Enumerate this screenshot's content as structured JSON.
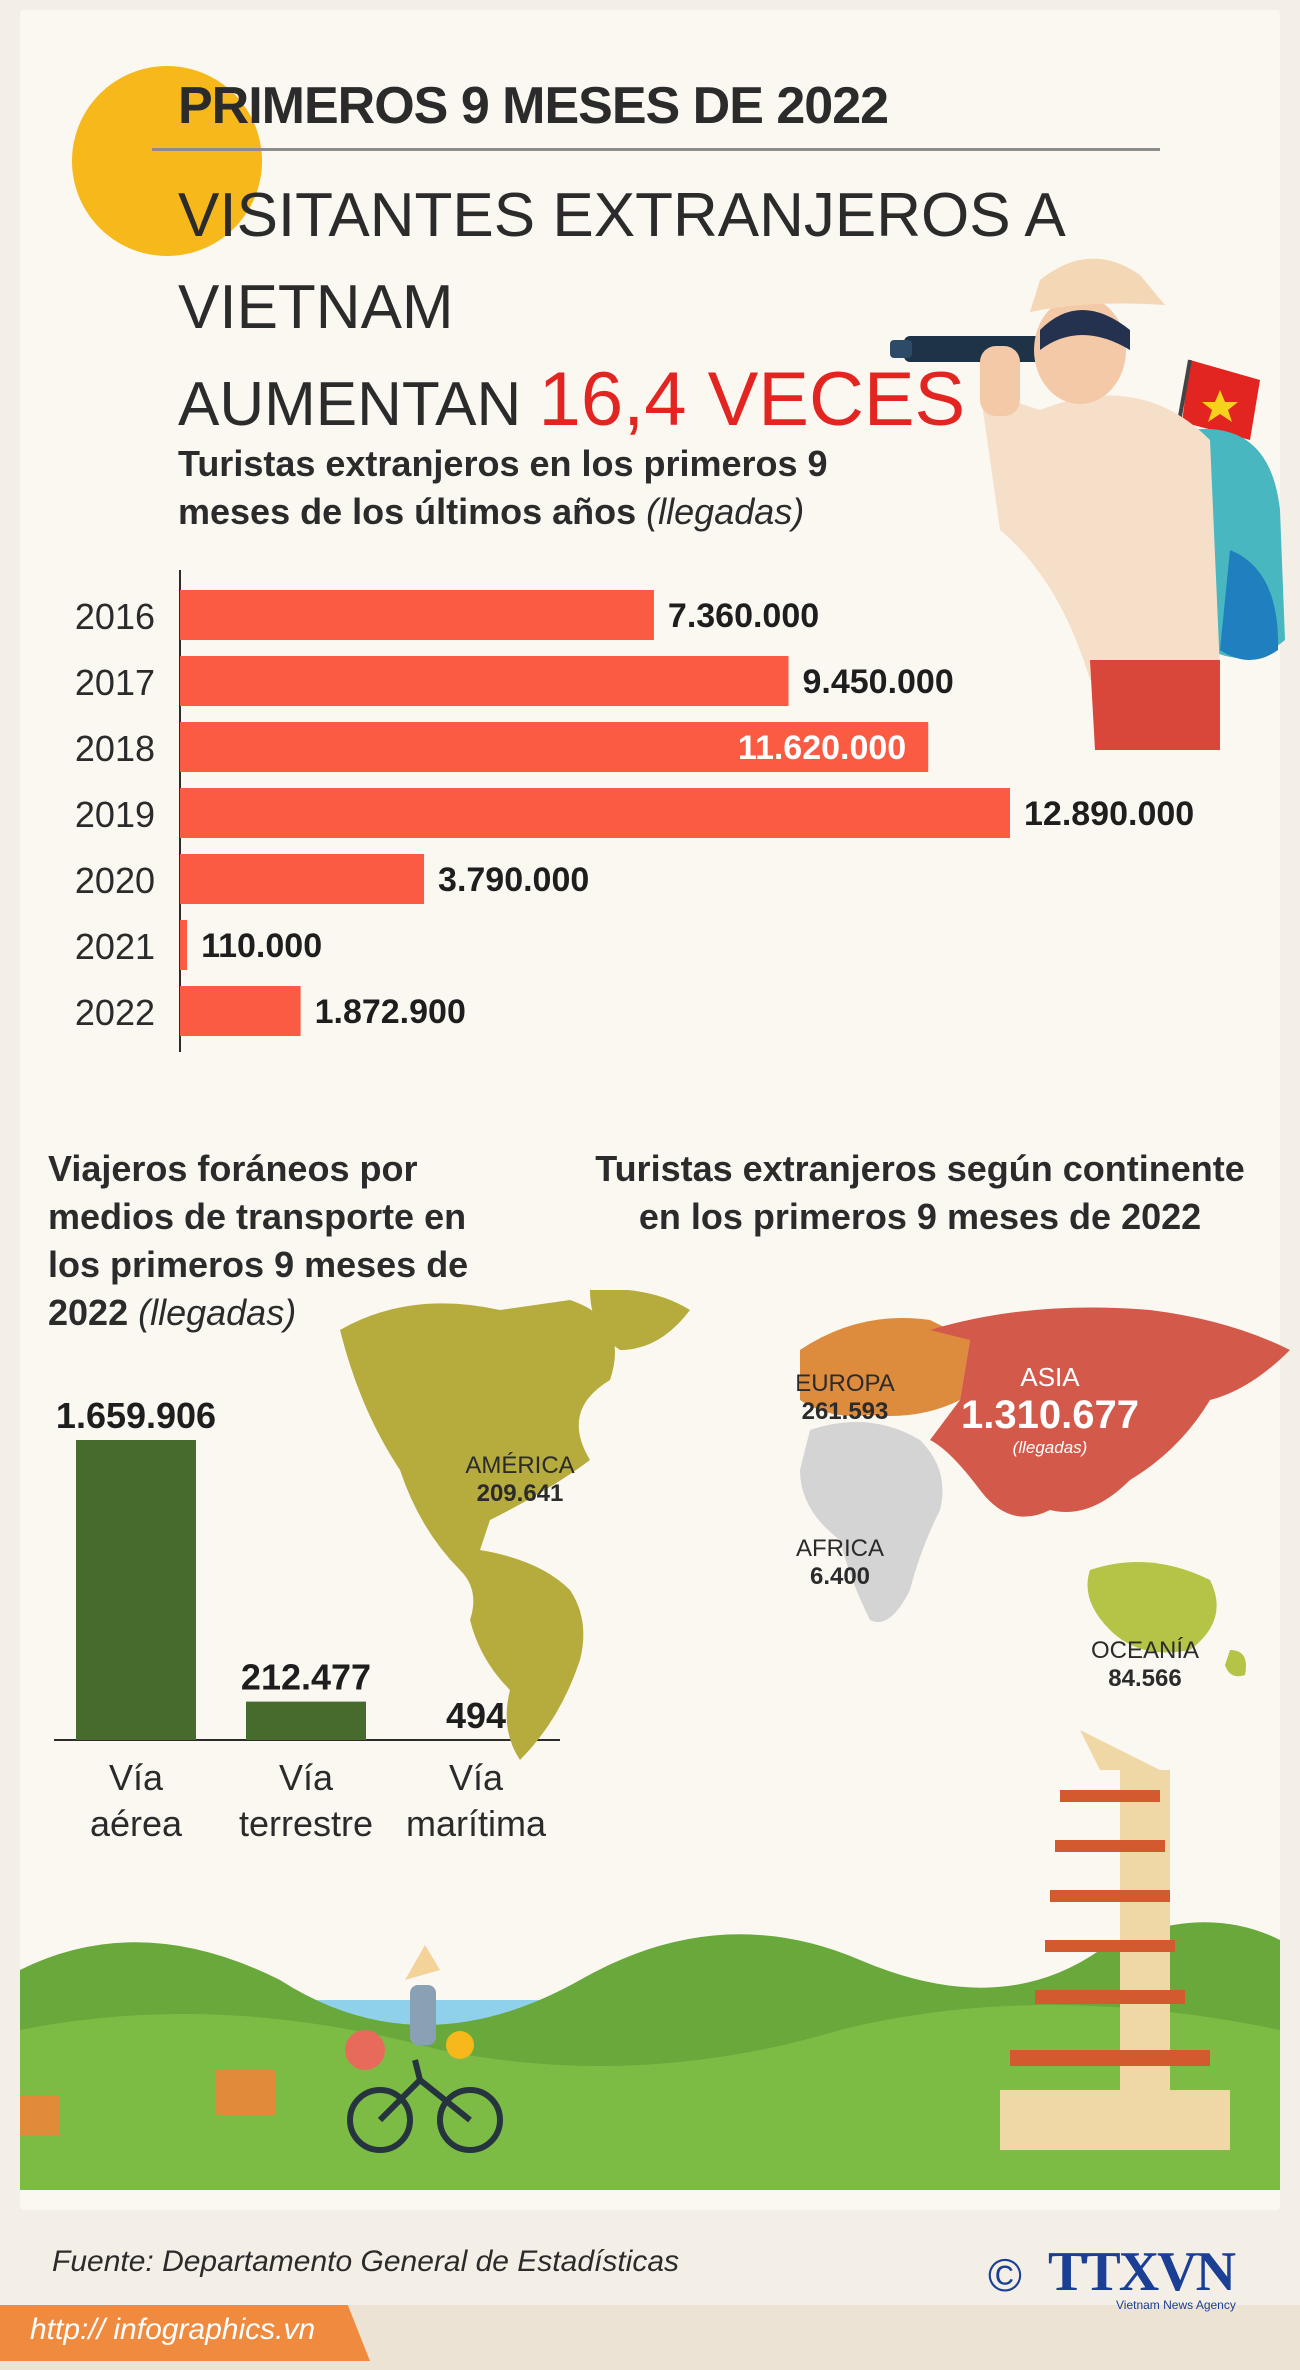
{
  "header": {
    "kicker": "PRIMEROS 9 MESES DE 2022",
    "headline_line1": "VISITANTES EXTRANJEROS A VIETNAM",
    "headline_line2_prefix": "AUMENTAN",
    "headline_highlight": "16,4 VECES"
  },
  "colors": {
    "bar_red": "#fb5a43",
    "bar_green": "#476b2c",
    "highlight_red": "#e32521",
    "america": "#b6ac3e",
    "europe": "#dd8b3d",
    "asia": "#d35a4b",
    "africa": "#d4d4d4",
    "oceania": "#b5c346"
  },
  "yearly": {
    "title_line1": "Turistas extranjeros en los primeros 9",
    "title_line2": "meses de los últimos años",
    "unit": "(llegadas)"
  },
  "transport": {
    "title_line1": "Viajeros foráneos por",
    "title_line2": "medios de transporte en",
    "title_line3": "los primeros 9 meses de",
    "title_line4": "2022",
    "unit": "(llegadas)"
  },
  "continents": {
    "title_line1": "Turistas extranjeros según continente",
    "title_line2": "en los primeros 9 meses de 2022",
    "america_name": "AMÉRICA",
    "america_value": "209.641",
    "europe_name": "EUROPA",
    "europe_value": "261.593",
    "asia_name": "ASIA",
    "asia_value": "1.310.677",
    "asia_unit": "(llegadas)",
    "africa_name": "AFRICA",
    "africa_value": "6.400",
    "oceania_name": "OCEANÍA",
    "oceania_value": "84.566"
  },
  "chart_data": [
    {
      "type": "bar",
      "orientation": "horizontal",
      "categories": [
        "2016",
        "2017",
        "2018",
        "2019",
        "2020",
        "2021",
        "2022"
      ],
      "values": [
        7360000,
        9450000,
        11620000,
        12890000,
        3790000,
        110000,
        1872900
      ],
      "value_labels": [
        "7.360.000",
        "9.450.000",
        "11.620.000",
        "12.890.000",
        "3.790.000",
        "110.000",
        "1.872.900"
      ],
      "label_inside": [
        false,
        false,
        true,
        false,
        false,
        false,
        false
      ],
      "xlim": [
        0,
        12890000
      ]
    },
    {
      "type": "bar",
      "orientation": "vertical",
      "categories": [
        [
          "Vía",
          "aérea"
        ],
        [
          "Vía",
          "terrestre"
        ],
        [
          "Vía",
          "marítima"
        ]
      ],
      "values": [
        1659906,
        212477,
        494
      ],
      "value_labels": [
        "1.659.906",
        "212.477",
        "494"
      ],
      "ylim": [
        0,
        1659906
      ]
    }
  ],
  "footer": {
    "source_label": "Fuente:",
    "source_text": "Departamento General de Estadísticas",
    "url": "http:// infographics.vn",
    "copyright": "©",
    "brand": "TTXVN",
    "brand_tag": "Vietnam News Agency"
  }
}
